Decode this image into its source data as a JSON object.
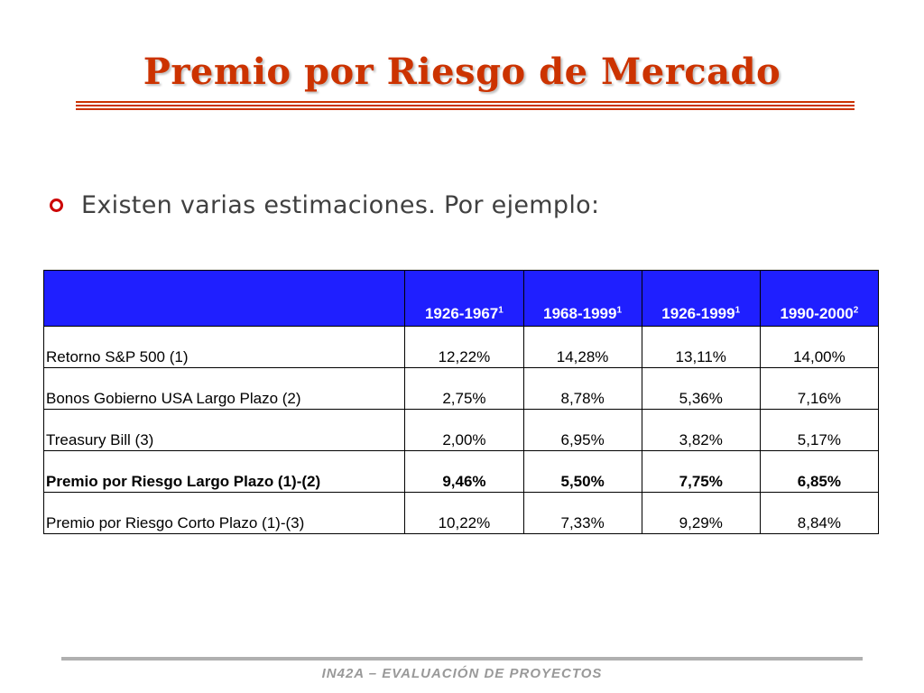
{
  "slide": {
    "title": "Premio por Riesgo de Mercado",
    "bullet": "Existen varias estimaciones. Por ejemplo:",
    "footer": "IN42A – EVALUACIÓN DE PROYECTOS"
  },
  "table": {
    "header": [
      {
        "period": "1926-1967",
        "note": "1"
      },
      {
        "period": "1968-1999",
        "note": "1"
      },
      {
        "period": "1926-1999",
        "note": "1"
      },
      {
        "period": "1990-2000",
        "note": "2"
      }
    ],
    "rows": [
      {
        "label": "Retorno S&P 500 (1)",
        "values": [
          "12,22%",
          "14,28%",
          "13,11%",
          "14,00%"
        ]
      },
      {
        "label": "Bonos Gobierno USA Largo Plazo (2)",
        "values": [
          "2,75%",
          "8,78%",
          "5,36%",
          "7,16%"
        ]
      },
      {
        "label": "Treasury Bill (3)",
        "values": [
          "2,00%",
          "6,95%",
          "3,82%",
          "5,17%"
        ]
      },
      {
        "label": "Premio por Riesgo Largo Plazo (1)-(2)",
        "values": [
          "9,46%",
          "5,50%",
          "7,75%",
          "6,85%"
        ]
      },
      {
        "label": "Premio por Riesgo Corto Plazo (1)-(3)",
        "values": [
          "10,22%",
          "7,33%",
          "9,29%",
          "8,84%"
        ]
      }
    ]
  },
  "colors": {
    "title": "#cc3300",
    "header_bg": "#1f1fff",
    "bullet_icon": "#cc0000"
  }
}
